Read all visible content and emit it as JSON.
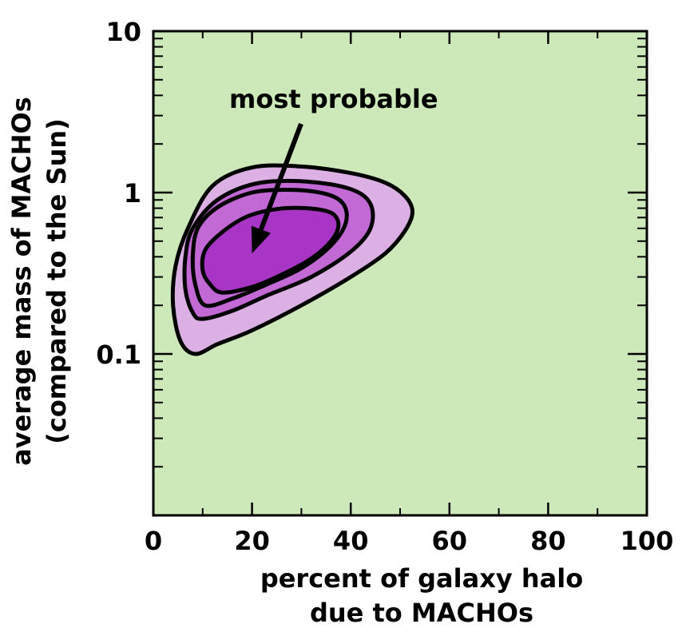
{
  "chart_data": {
    "type": "contour",
    "xlabel": [
      "percent of galaxy halo",
      "due to MACHOs"
    ],
    "ylabel": [
      "average mass of MACHOs",
      "(compared to the Sun)"
    ],
    "x_ticks": [
      0,
      20,
      40,
      60,
      80,
      100
    ],
    "y_ticks": [
      0.1,
      1,
      10
    ],
    "y_tick_labels": [
      "0.1",
      "1",
      "10"
    ],
    "x_tick_labels": [
      "0",
      "20",
      "40",
      "60",
      "80",
      "100"
    ],
    "xlim": [
      0,
      100
    ],
    "ylim": [
      0.01,
      10
    ],
    "y_scale": "log",
    "grid": false,
    "plot_background": "#cde9b9",
    "annotation": {
      "text": "most probable",
      "point": [
        20,
        0.42
      ]
    },
    "contours": [
      {
        "level": 1,
        "fill": "#dcb0e4",
        "points": [
          [
            8.5,
            0.1
          ],
          [
            13,
            0.115
          ],
          [
            20,
            0.14
          ],
          [
            30,
            0.2
          ],
          [
            40,
            0.3
          ],
          [
            47,
            0.42
          ],
          [
            51,
            0.58
          ],
          [
            52.5,
            0.76
          ],
          [
            51,
            0.95
          ],
          [
            47,
            1.15
          ],
          [
            40,
            1.32
          ],
          [
            30,
            1.45
          ],
          [
            20,
            1.43
          ],
          [
            12,
            1.1
          ],
          [
            7,
            0.6
          ],
          [
            4.5,
            0.35
          ],
          [
            4,
            0.2
          ],
          [
            5.5,
            0.12
          ]
        ]
      },
      {
        "level": 2,
        "fill": "#c269d6",
        "points": [
          [
            10,
            0.165
          ],
          [
            16,
            0.185
          ],
          [
            23,
            0.23
          ],
          [
            32,
            0.3
          ],
          [
            40,
            0.43
          ],
          [
            44,
            0.6
          ],
          [
            44,
            0.85
          ],
          [
            40,
            1.05
          ],
          [
            31,
            1.17
          ],
          [
            21,
            1.14
          ],
          [
            13,
            0.9
          ],
          [
            8,
            0.6
          ],
          [
            6.5,
            0.4
          ],
          [
            6.5,
            0.25
          ],
          [
            8,
            0.18
          ]
        ]
      },
      {
        "level": 3,
        "fill": "#c269d6",
        "points": [
          [
            10.5,
            0.2
          ],
          [
            16,
            0.22
          ],
          [
            23,
            0.27
          ],
          [
            30,
            0.34
          ],
          [
            36,
            0.47
          ],
          [
            39,
            0.65
          ],
          [
            38.5,
            0.85
          ],
          [
            35,
            0.98
          ],
          [
            28,
            1.04
          ],
          [
            20,
            1.0
          ],
          [
            13,
            0.81
          ],
          [
            9,
            0.6
          ],
          [
            8,
            0.4
          ],
          [
            8.5,
            0.27
          ]
        ]
      },
      {
        "level": 4,
        "fill": "#a835c5",
        "points": [
          [
            14,
            0.24
          ],
          [
            20,
            0.26
          ],
          [
            26,
            0.31
          ],
          [
            32,
            0.39
          ],
          [
            36,
            0.5
          ],
          [
            37.5,
            0.63
          ],
          [
            36,
            0.75
          ],
          [
            31,
            0.8
          ],
          [
            25,
            0.79
          ],
          [
            19,
            0.71
          ],
          [
            14,
            0.57
          ],
          [
            10.5,
            0.44
          ],
          [
            10,
            0.33
          ],
          [
            11.5,
            0.27
          ]
        ]
      }
    ]
  }
}
